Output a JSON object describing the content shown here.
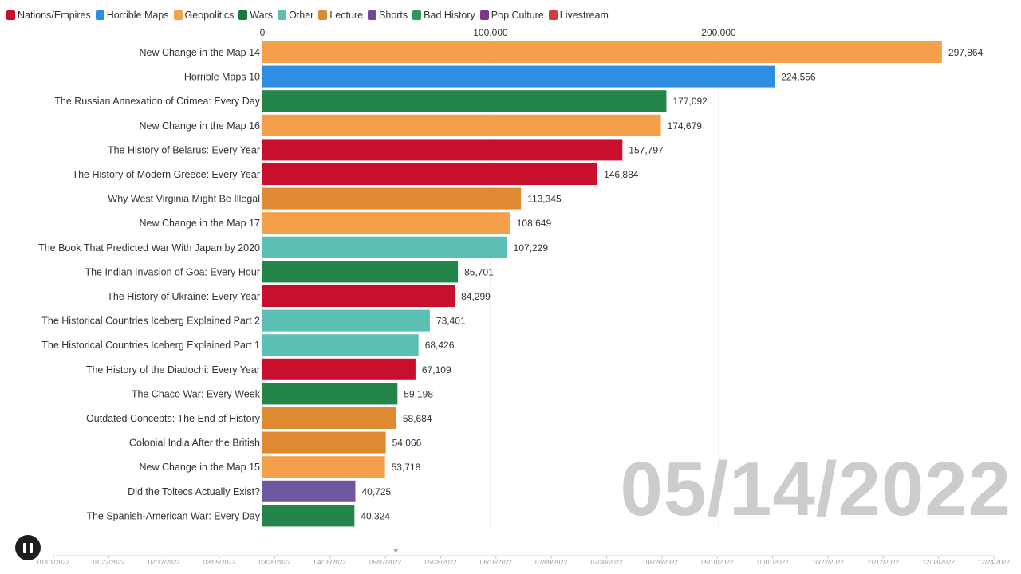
{
  "legend": [
    {
      "label": "Nations/Empires",
      "color": "#c8102e"
    },
    {
      "label": "Horrible Maps",
      "color": "#2e8ee2"
    },
    {
      "label": "Geopolitics",
      "color": "#f4a04a"
    },
    {
      "label": "Wars",
      "color": "#1a7a3c"
    },
    {
      "label": "Other",
      "color": "#5bc0b3"
    },
    {
      "label": "Lecture",
      "color": "#de8a30"
    },
    {
      "label": "Shorts",
      "color": "#6e4a9e"
    },
    {
      "label": "Bad History",
      "color": "#2a9a5a"
    },
    {
      "label": "Pop Culture",
      "color": "#7a3a8a"
    },
    {
      "label": "Livestream",
      "color": "#c84040"
    }
  ],
  "date": "05/14/2022",
  "controls": {
    "pause_icon": "pause-icon"
  },
  "chart_data": {
    "type": "bar",
    "orientation": "horizontal",
    "xlim": [
      0,
      300000
    ],
    "x_ticks": [
      {
        "value": 0,
        "label": "0"
      },
      {
        "value": 100000,
        "label": "100,000"
      },
      {
        "value": 200000,
        "label": "200,000"
      }
    ],
    "grid": true,
    "legend_position": "top-left",
    "bars": [
      {
        "label": "New Change in the Map 14",
        "value": 297864,
        "value_label": "297,864",
        "category": "Geopolitics",
        "color": "#f4a04a"
      },
      {
        "label": "Horrible Maps 10",
        "value": 224556,
        "value_label": "224,556",
        "category": "Horrible Maps",
        "color": "#2e8ee2"
      },
      {
        "label": "The Russian Annexation of Crimea: Every Day",
        "value": 177092,
        "value_label": "177,092",
        "category": "Wars",
        "color": "#23854a"
      },
      {
        "label": "New Change in the Map 16",
        "value": 174679,
        "value_label": "174,679",
        "category": "Geopolitics",
        "color": "#f4a04a"
      },
      {
        "label": "The History of Belarus: Every Year",
        "value": 157797,
        "value_label": "157,797",
        "category": "Nations/Empires",
        "color": "#c8102e"
      },
      {
        "label": "The History of Modern Greece: Every Year",
        "value": 146884,
        "value_label": "146,884",
        "category": "Nations/Empires",
        "color": "#c8102e"
      },
      {
        "label": "Why West Virginia Might Be Illegal",
        "value": 113345,
        "value_label": "113,345",
        "category": "Lecture",
        "color": "#de8a30"
      },
      {
        "label": "New Change in the Map 17",
        "value": 108649,
        "value_label": "108,649",
        "category": "Geopolitics",
        "color": "#f4a04a"
      },
      {
        "label": "The Book That Predicted War With Japan by 2020",
        "value": 107229,
        "value_label": "107,229",
        "category": "Other",
        "color": "#5bc0b3"
      },
      {
        "label": "The Indian Invasion of Goa: Every Hour",
        "value": 85701,
        "value_label": "85,701",
        "category": "Wars",
        "color": "#23854a"
      },
      {
        "label": "The History of Ukraine: Every Year",
        "value": 84299,
        "value_label": "84,299",
        "category": "Nations/Empires",
        "color": "#c8102e"
      },
      {
        "label": "The Historical Countries Iceberg Explained Part 2",
        "value": 73401,
        "value_label": "73,401",
        "category": "Other",
        "color": "#5bc0b3"
      },
      {
        "label": "The Historical Countries Iceberg Explained Part 1",
        "value": 68426,
        "value_label": "68,426",
        "category": "Other",
        "color": "#5bc0b3"
      },
      {
        "label": "The History of the Diadochi: Every Year",
        "value": 67109,
        "value_label": "67,109",
        "category": "Nations/Empires",
        "color": "#c8102e"
      },
      {
        "label": "The Chaco War: Every Week",
        "value": 59198,
        "value_label": "59,198",
        "category": "Wars",
        "color": "#23854a"
      },
      {
        "label": "Outdated Concepts: The End of History",
        "value": 58684,
        "value_label": "58,684",
        "category": "Lecture",
        "color": "#de8a30"
      },
      {
        "label": "Colonial India After the British",
        "value": 54066,
        "value_label": "54,066",
        "category": "Lecture",
        "color": "#de8a30"
      },
      {
        "label": "New Change in the Map 15",
        "value": 53718,
        "value_label": "53,718",
        "category": "Geopolitics",
        "color": "#f4a04a"
      },
      {
        "label": "Did the Toltecs Actually Exist?",
        "value": 40725,
        "value_label": "40,725",
        "category": "Shorts",
        "color": "#6e58a0"
      },
      {
        "label": "The Spanish-American War: Every Day",
        "value": 40324,
        "value_label": "40,324",
        "category": "Wars",
        "color": "#23854a"
      }
    ]
  },
  "timeline": {
    "dates": [
      "01/01/2022",
      "01/22/2022",
      "02/12/2022",
      "03/05/2022",
      "03/26/2022",
      "04/16/2022",
      "05/07/2022",
      "05/28/2022",
      "06/18/2022",
      "07/09/2022",
      "07/30/2022",
      "08/20/2022",
      "09/10/2022",
      "10/01/2022",
      "10/22/2022",
      "11/12/2022",
      "12/03/2022",
      "12/24/2022"
    ],
    "current_fraction": 0.364
  }
}
